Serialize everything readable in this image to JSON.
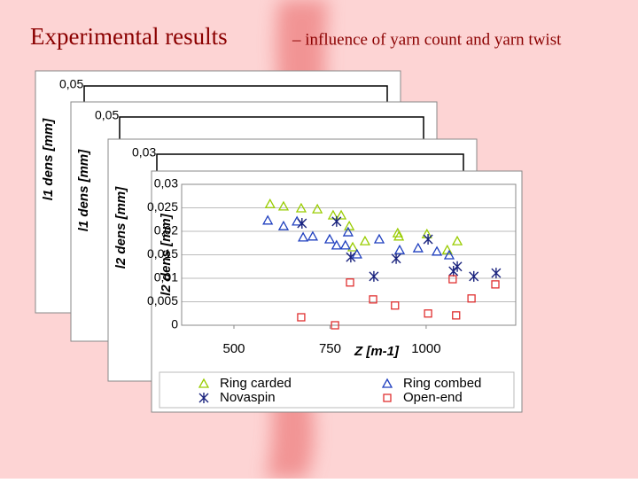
{
  "slide_title": "Experimental results",
  "slide_subtitle": "– influence of yarn count and yarn twist",
  "background_charts": [
    {
      "ylabel": "l1 dens [mm]",
      "yticks": [
        {
          "value": 0.05,
          "label": "0,05"
        }
      ]
    },
    {
      "ylabel": "l1 dens [mm]",
      "yticks": [
        {
          "value": 0.05,
          "label": "0,05"
        }
      ]
    },
    {
      "ylabel": "l2 dens [mm]",
      "yticks": [
        {
          "value": 0.03,
          "label": "0,03"
        }
      ]
    }
  ],
  "chart_data": {
    "type": "scatter",
    "xlabel": "Z [m-1]",
    "ylabel": "l2 dens [mm]",
    "xlim": [
      364,
      1233
    ],
    "ylim": [
      0,
      0.03
    ],
    "xticks": [
      500,
      750,
      1000
    ],
    "yticks": [
      0,
      {
        "value": 0.005,
        "label": "0,005"
      },
      {
        "value": 0.01,
        "label": "0,01"
      },
      {
        "value": 0.015,
        "label": "0,015"
      },
      {
        "value": 0.02,
        "label": "0,02"
      },
      {
        "value": 0.025,
        "label": "0,025"
      },
      {
        "value": 0.03,
        "label": "0,03"
      }
    ],
    "grid": true,
    "series": [
      {
        "name": "Ring carded",
        "color": "#99cc00",
        "marker": "triangle",
        "x": [
          594,
          629,
          675,
          717,
          758,
          779,
          800,
          809,
          841,
          926,
          929,
          1002,
          1055,
          1081
        ],
        "values": [
          0.0258,
          0.0253,
          0.0249,
          0.0247,
          0.0234,
          0.0234,
          0.0211,
          0.0166,
          0.0179,
          0.0196,
          0.0189,
          0.0194,
          0.016,
          0.0179
        ]
      },
      {
        "name": "Ring combed",
        "color": "#1f3fbf",
        "marker": "triangle",
        "x": [
          588,
          629,
          664,
          680,
          705,
          749,
          767,
          790,
          797,
          820,
          878,
          931,
          979,
          1028,
          1060
        ],
        "values": [
          0.0223,
          0.0211,
          0.0221,
          0.0187,
          0.0189,
          0.0183,
          0.017,
          0.017,
          0.0198,
          0.0151,
          0.0183,
          0.016,
          0.0164,
          0.0157,
          0.0149
        ]
      },
      {
        "name": "Novaspin",
        "color": "#1a237e",
        "marker": "star",
        "x": [
          677,
          767,
          804,
          864,
          922,
          1005,
          1071,
          1081,
          1124,
          1182
        ],
        "values": [
          0.0217,
          0.0221,
          0.0145,
          0.0104,
          0.0142,
          0.0183,
          0.0115,
          0.0125,
          0.0104,
          0.0111
        ]
      },
      {
        "name": "Open-end",
        "color": "#e03030",
        "marker": "square",
        "x": [
          675,
          763,
          802,
          862,
          919,
          1005,
          1069,
          1078,
          1118,
          1180
        ],
        "values": [
          0.0017,
          0,
          0.0091,
          0.0055,
          0.0042,
          0.0025,
          0.0098,
          0.0021,
          0.0057,
          0.0087
        ]
      }
    ]
  }
}
